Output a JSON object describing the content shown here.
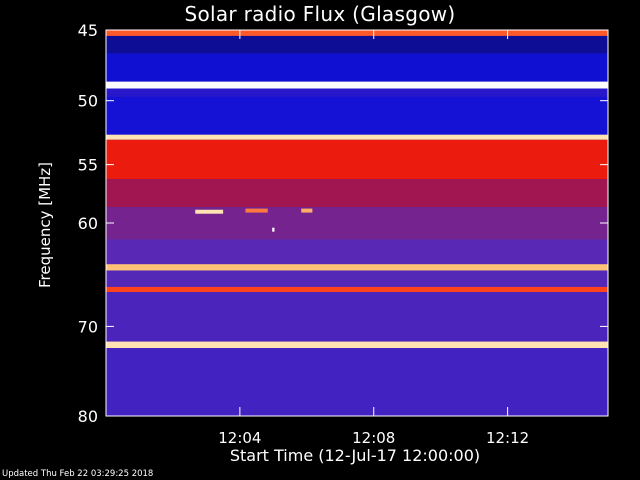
{
  "chart_data": {
    "type": "heatmap",
    "title": "Solar radio Flux (Glasgow)",
    "ylabel": "Frequency [MHz]",
    "xlabel": "Start Time (12-Jul-17 12:00:00)",
    "y_axis": {
      "ticks": [
        45,
        50,
        55,
        60,
        70,
        80
      ],
      "range": [
        45,
        80
      ],
      "scale": "log"
    },
    "x_axis": {
      "ticks": [
        "12:04",
        "12:08",
        "12:12"
      ],
      "range": [
        "12:00:00",
        "12:15:00"
      ]
    },
    "colormap": [
      "#0a0a5a",
      "#1010d8",
      "#5a2ab4",
      "#b81030",
      "#ff2000",
      "#ffd080",
      "#ffffff"
    ],
    "bands": [
      {
        "f_from": 45.0,
        "f_to": 45.4,
        "level": 0.72
      },
      {
        "f_from": 45.4,
        "f_to": 46.6,
        "level": 0.08
      },
      {
        "f_from": 46.6,
        "f_to": 48.6,
        "level": 0.16
      },
      {
        "f_from": 48.6,
        "f_to": 49.1,
        "level": 1.0
      },
      {
        "f_from": 49.1,
        "f_to": 49.7,
        "level": 0.22
      },
      {
        "f_from": 49.7,
        "f_to": 52.6,
        "level": 0.18
      },
      {
        "f_from": 52.6,
        "f_to": 53.0,
        "level": 0.9
      },
      {
        "f_from": 53.0,
        "f_to": 56.2,
        "level": 0.62
      },
      {
        "f_from": 56.2,
        "f_to": 58.6,
        "level": 0.46
      },
      {
        "f_from": 58.6,
        "f_to": 61.5,
        "level": 0.38
      },
      {
        "f_from": 61.5,
        "f_to": 63.8,
        "level": 0.33
      },
      {
        "f_from": 63.8,
        "f_to": 64.4,
        "level": 0.82
      },
      {
        "f_from": 64.4,
        "f_to": 66.0,
        "level": 0.32
      },
      {
        "f_from": 66.0,
        "f_to": 66.5,
        "level": 0.7
      },
      {
        "f_from": 66.5,
        "f_to": 71.6,
        "level": 0.3
      },
      {
        "f_from": 71.6,
        "f_to": 72.3,
        "level": 0.9
      },
      {
        "f_from": 72.3,
        "f_to": 80.0,
        "level": 0.28
      }
    ],
    "bursts": [
      {
        "t_start": "12:02:40",
        "t_end": "12:03:30",
        "freq": 59.0,
        "level": 0.9
      },
      {
        "t_start": "12:04:10",
        "t_end": "12:04:50",
        "freq": 58.9,
        "level": 0.75
      },
      {
        "t_start": "12:05:50",
        "t_end": "12:06:10",
        "freq": 58.9,
        "level": 0.8
      },
      {
        "t_start": "12:04:58",
        "t_end": "12:05:02",
        "freq": 60.6,
        "level": 1.0
      }
    ]
  },
  "footer": {
    "updated": "Updated Thu Feb 22 03:29:25 2018"
  }
}
